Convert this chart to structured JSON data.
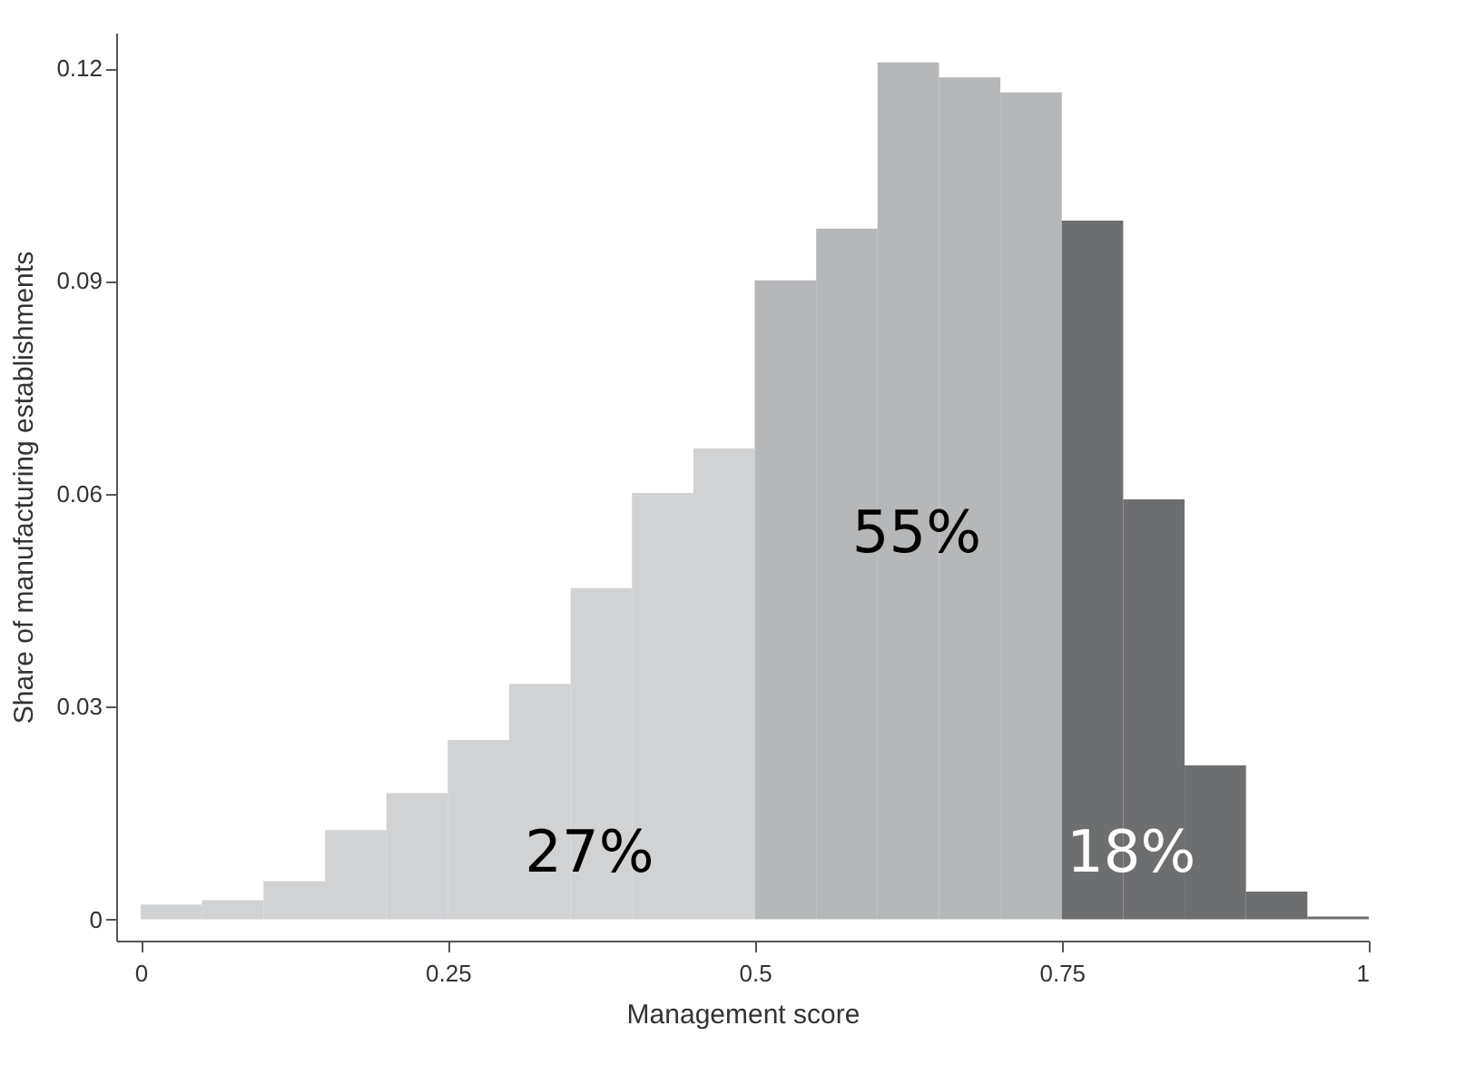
{
  "chart_data": {
    "type": "histogram",
    "xlabel": "Management score",
    "ylabel": "Share of manufacturing establishments",
    "bins": [
      0,
      0.05,
      0.1,
      0.15,
      0.2,
      0.25,
      0.3,
      0.35,
      0.4,
      0.45,
      0.5,
      0.55,
      0.6,
      0.65,
      0.7,
      0.75,
      0.8,
      0.85,
      0.9,
      0.95,
      1
    ],
    "values": [
      0.0021,
      0.0027,
      0.0054,
      0.0126,
      0.0178,
      0.0253,
      0.0332,
      0.0467,
      0.0601,
      0.0664,
      0.0901,
      0.0974,
      0.1208,
      0.1187,
      0.1166,
      0.0985,
      0.0592,
      0.0217,
      0.0039,
      0.0004
    ],
    "colors": [
      "#d1d2d4",
      "#d1d2d4",
      "#d1d2d4",
      "#d1d2d4",
      "#d1d2d4",
      "#d1d2d4",
      "#d1d2d4",
      "#d1d2d4",
      "#d1d2d4",
      "#d1d2d4",
      "#b6b7b9",
      "#b6b7b9",
      "#b6b7b9",
      "#b6b7b9",
      "#b6b7b9",
      "#6d6e70",
      "#6d6e70",
      "#6d6e70",
      "#6d6e70",
      "#6d6e70"
    ],
    "xlim": [
      -0.02,
      1
    ],
    "xticks": [
      0,
      0.25,
      0.5,
      0.75,
      1
    ],
    "ylim": [
      -0.003,
      0.125
    ],
    "yticks": [
      0,
      0.03,
      0.06,
      0.09,
      0.12
    ],
    "grid": false,
    "legend": false,
    "annotations": [
      "27%",
      "55%",
      "18%"
    ]
  }
}
